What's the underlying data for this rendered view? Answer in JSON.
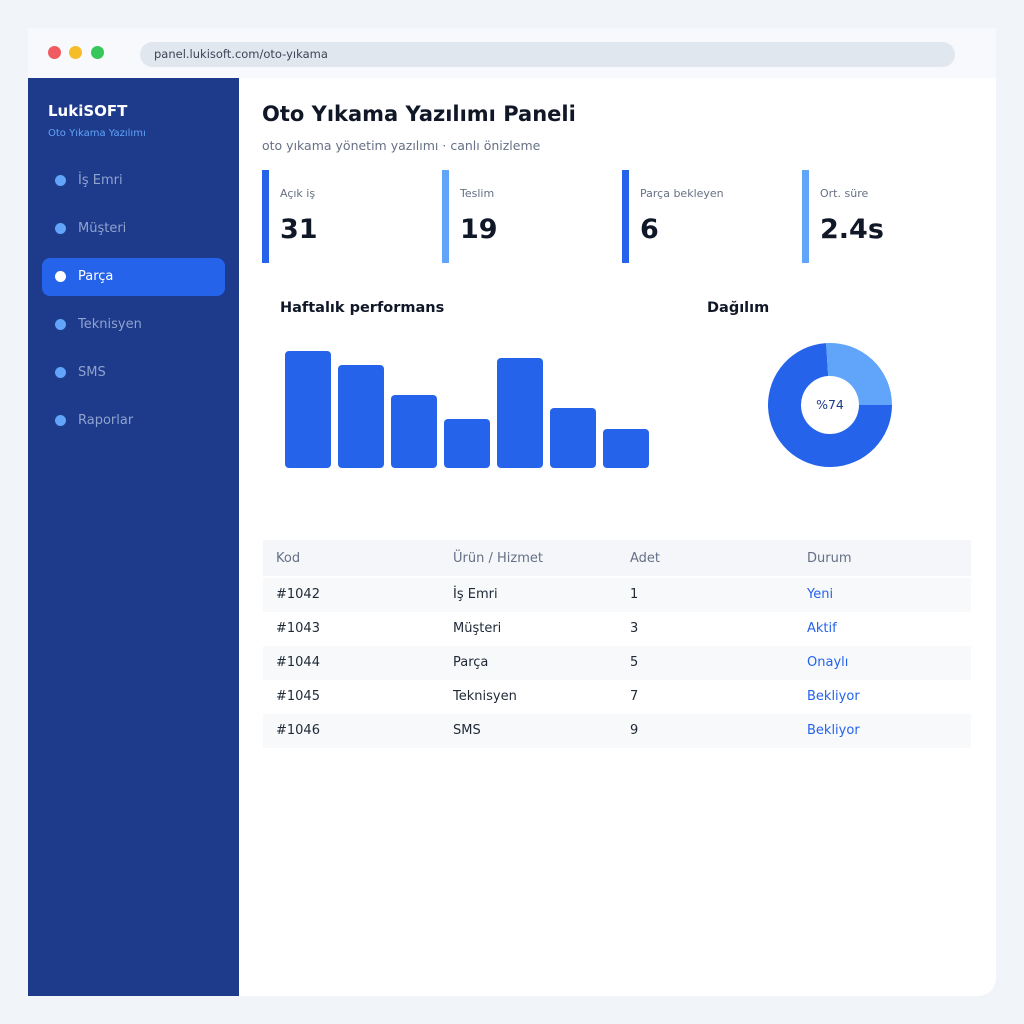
{
  "browser": {
    "url": "panel.lukisoft.com/oto-yıkama"
  },
  "sidebar": {
    "brand": "LukiSOFT",
    "subtitle": "Oto Yıkama Yazılımı",
    "items": [
      {
        "label": "İş Emri",
        "active": false
      },
      {
        "label": "Müşteri",
        "active": false
      },
      {
        "label": "Parça",
        "active": true
      },
      {
        "label": "Teknisyen",
        "active": false
      },
      {
        "label": "SMS",
        "active": false
      },
      {
        "label": "Raporlar",
        "active": false
      }
    ]
  },
  "header": {
    "title": "Oto Yıkama Yazılımı Paneli",
    "subtitle": "oto yıkama yönetim yazılımı · canlı önizleme"
  },
  "stats": [
    {
      "label": "Açık iş",
      "value": "31"
    },
    {
      "label": "Teslim",
      "value": "19"
    },
    {
      "label": "Parça bekleyen",
      "value": "6"
    },
    {
      "label": "Ort. süre",
      "value": "2.4s"
    }
  ],
  "charts": {
    "bar_title": "Haftalık performans",
    "donut_title": "Dağılım",
    "donut_label": "%74"
  },
  "chart_data": [
    {
      "type": "bar",
      "title": "Haftalık performans",
      "categories": [
        "",
        "",
        "",
        "",
        "",
        "",
        ""
      ],
      "values": [
        100,
        88,
        62,
        42,
        94,
        51,
        33
      ]
    },
    {
      "type": "pie",
      "title": "Dağılım",
      "values": [
        74,
        26
      ],
      "center_label": "%74"
    }
  ],
  "colors": {
    "primary": "#2563eb",
    "light": "#60a5fa",
    "sidebar": "#1e3a8a"
  },
  "table": {
    "headers": [
      "Kod",
      "Ürün / Hizmet",
      "Adet",
      "Durum"
    ],
    "rows": [
      [
        "#1042",
        "İş Emri",
        "1",
        "Yeni"
      ],
      [
        "#1043",
        "Müşteri",
        "3",
        "Aktif"
      ],
      [
        "#1044",
        "Parça",
        "5",
        "Onaylı"
      ],
      [
        "#1045",
        "Teknisyen",
        "7",
        "Bekliyor"
      ],
      [
        "#1046",
        "SMS",
        "9",
        "Bekliyor"
      ]
    ]
  }
}
